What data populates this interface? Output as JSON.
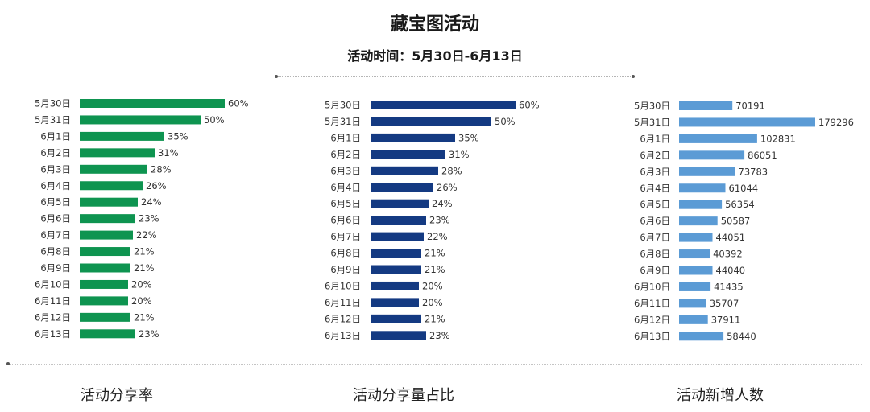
{
  "title": "藏宝图活动",
  "subtitle": "活动时间：5月30日-6月13日",
  "chart_data": [
    {
      "type": "bar",
      "orientation": "horizontal",
      "caption": "活动分享率",
      "color": "#0e9450",
      "unit": "%",
      "categories": [
        "5月30日",
        "5月31日",
        "6月1日",
        "6月2日",
        "6月3日",
        "6月4日",
        "6月5日",
        "6月6日",
        "6月7日",
        "6月8日",
        "6月9日",
        "6月10日",
        "6月11日",
        "6月12日",
        "6月13日"
      ],
      "values": [
        60,
        50,
        35,
        31,
        28,
        26,
        24,
        23,
        22,
        21,
        21,
        20,
        20,
        21,
        23
      ],
      "labels": [
        "60%",
        "50%",
        "35%",
        "31%",
        "28%",
        "26%",
        "24%",
        "23%",
        "22%",
        "21%",
        "21%",
        "20%",
        "20%",
        "21%",
        "23%"
      ]
    },
    {
      "type": "bar",
      "orientation": "horizontal",
      "caption": "活动分享量占比",
      "color": "#143a82",
      "unit": "%",
      "categories": [
        "5月30日",
        "5月31日",
        "6月1日",
        "6月2日",
        "6月3日",
        "6月4日",
        "6月5日",
        "6月6日",
        "6月7日",
        "6月8日",
        "6月9日",
        "6月10日",
        "6月11日",
        "6月12日",
        "6月13日"
      ],
      "values": [
        60,
        50,
        35,
        31,
        28,
        26,
        24,
        23,
        22,
        21,
        21,
        20,
        20,
        21,
        23
      ],
      "labels": [
        "60%",
        "50%",
        "35%",
        "31%",
        "28%",
        "26%",
        "24%",
        "23%",
        "22%",
        "21%",
        "21%",
        "20%",
        "20%",
        "21%",
        "23%"
      ]
    },
    {
      "type": "bar",
      "orientation": "horizontal",
      "caption": "活动新增人数",
      "color": "#5b9bd5",
      "categories": [
        "5月30日",
        "5月31日",
        "6月1日",
        "6月2日",
        "6月3日",
        "6月4日",
        "6月5日",
        "6月6日",
        "6月7日",
        "6月8日",
        "6月9日",
        "6月10日",
        "6月11日",
        "6月12日",
        "6月13日"
      ],
      "values": [
        70191,
        179296,
        102831,
        86051,
        73783,
        61044,
        56354,
        50587,
        44051,
        40392,
        44040,
        41435,
        35707,
        37911,
        58440
      ],
      "labels": [
        "70191",
        "179296",
        "102831",
        "86051",
        "73783",
        "61044",
        "56354",
        "50587",
        "44051",
        "40392",
        "44040",
        "41435",
        "35707",
        "37911",
        "58440"
      ]
    }
  ]
}
